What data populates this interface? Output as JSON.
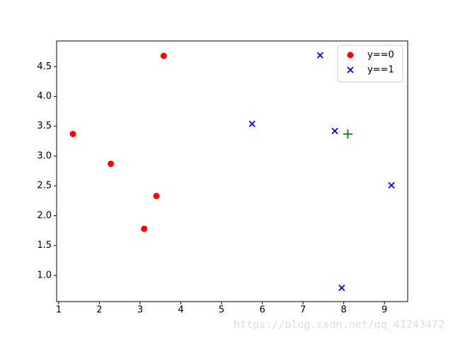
{
  "chart_data": {
    "type": "scatter",
    "xlim": [
      0.95,
      9.57
    ],
    "ylim": [
      0.56,
      4.93
    ],
    "xticks": [
      1,
      2,
      3,
      4,
      5,
      6,
      7,
      8,
      9
    ],
    "yticks": [
      {
        "value": 1,
        "label": "1.0"
      },
      1.5,
      {
        "value": 2,
        "label": "2.0"
      },
      2.5,
      {
        "value": 3,
        "label": "3.0"
      },
      3.5,
      {
        "value": 4,
        "label": "4.0"
      },
      4.5
    ],
    "legend": "upper right",
    "series": [
      {
        "name": "y==0",
        "color": "#ff0000",
        "marker": "o",
        "x": [
          1.35,
          2.28,
          3.1,
          3.4,
          3.58
        ],
        "values": [
          3.37,
          2.87,
          1.78,
          2.33,
          4.68
        ]
      },
      {
        "name": "y==1",
        "color": "#0000ff",
        "marker": "x",
        "x": [
          5.75,
          7.42,
          7.78,
          9.17,
          7.95
        ],
        "values": [
          3.54,
          4.69,
          3.42,
          2.51,
          0.79
        ]
      },
      {
        "color": "#008000",
        "marker": "+",
        "x": [
          8.1
        ],
        "values": [
          3.37
        ]
      }
    ],
    "watermark": "https://blog.csdn.net/qq_41243472"
  }
}
